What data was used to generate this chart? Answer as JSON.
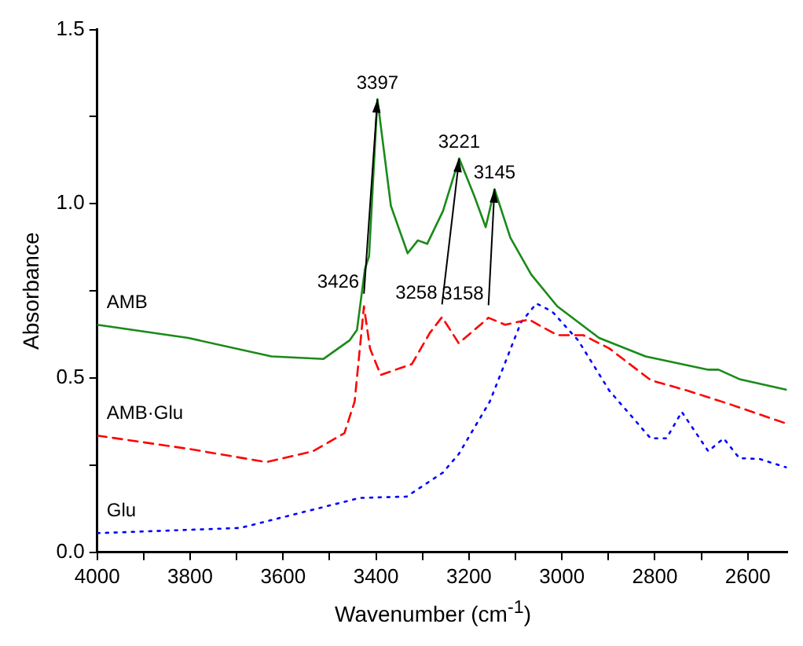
{
  "chart_data": {
    "type": "line",
    "xlabel": "Wavenumber (cm$^{-1}$)",
    "ylabel": "Absorbance",
    "xlim": [
      4000,
      2515
    ],
    "ylim": [
      0,
      1.5
    ],
    "xticks": [
      4000,
      {
        "value": 3900,
        "label": null
      },
      3800,
      {
        "value": 3700,
        "label": null
      },
      3600,
      {
        "value": 3500,
        "label": null
      },
      3400,
      {
        "value": 3300,
        "label": null
      },
      3200,
      {
        "value": 3100,
        "label": null
      },
      3000,
      {
        "value": 2900,
        "label": null
      },
      2800,
      {
        "value": 2700,
        "label": null
      },
      2600
    ],
    "yticks": [
      {
        "value": 0,
        "label": "0.0"
      },
      {
        "value": 0.25,
        "label": null
      },
      {
        "value": 0.5,
        "label": "0.5"
      },
      {
        "value": 0.75,
        "label": null
      },
      {
        "value": 1,
        "label": "1.0"
      },
      {
        "value": 1.25,
        "label": null
      },
      {
        "value": 1.5,
        "label": "1.5"
      }
    ],
    "grid": false,
    "legend": false,
    "marker": "none",
    "series": [
      {
        "name": "AMB",
        "color": "#1a8a1a",
        "line_style": "solid",
        "x": [
          4000,
          3804,
          3625,
          3513,
          3457,
          3441,
          3424,
          3415,
          3397,
          3368,
          3332,
          3310,
          3290,
          3256,
          3221,
          3189,
          3164,
          3145,
          3111,
          3066,
          3010,
          2920,
          2820,
          2685,
          2663,
          2618,
          2518
        ],
        "values": [
          0.653,
          0.615,
          0.562,
          0.555,
          0.608,
          0.638,
          0.812,
          0.85,
          1.3,
          0.994,
          0.858,
          0.895,
          0.885,
          0.979,
          1.13,
          1.024,
          0.933,
          1.042,
          0.903,
          0.797,
          0.706,
          0.615,
          0.562,
          0.524,
          0.524,
          0.497,
          0.467
        ]
      },
      {
        "name": "AMB·Glu",
        "color": "#ff0000",
        "line_style": "dashed",
        "x": [
          4000,
          3804,
          3636,
          3536,
          3468,
          3446,
          3426,
          3413,
          3390,
          3323,
          3284,
          3258,
          3222,
          3158,
          3122,
          3071,
          3010,
          2954,
          2898,
          2809,
          2730,
          2641,
          2518
        ],
        "values": [
          0.335,
          0.297,
          0.259,
          0.29,
          0.342,
          0.433,
          0.706,
          0.585,
          0.509,
          0.54,
          0.63,
          0.675,
          0.6,
          0.673,
          0.653,
          0.668,
          0.623,
          0.623,
          0.585,
          0.494,
          0.464,
          0.426,
          0.37
        ]
      },
      {
        "name": "Glu",
        "color": "#0000ff",
        "line_style": "dotted",
        "x": [
          4000,
          3692,
          3558,
          3435,
          3334,
          3256,
          3222,
          3155,
          3088,
          3055,
          3021,
          2965,
          2898,
          2809,
          2775,
          2742,
          2685,
          2652,
          2618,
          2575,
          2518
        ],
        "values": [
          0.055,
          0.07,
          0.115,
          0.156,
          0.16,
          0.229,
          0.282,
          0.433,
          0.66,
          0.714,
          0.691,
          0.608,
          0.464,
          0.327,
          0.327,
          0.403,
          0.29,
          0.327,
          0.27,
          0.268,
          0.244
        ]
      }
    ],
    "annotations": [
      {
        "text": "3426",
        "x": 3426,
        "y": 0.706
      },
      {
        "text": "3397",
        "x": 3397,
        "y": 1.3
      },
      {
        "text": "3258",
        "x": 3258,
        "y": 0.675
      },
      {
        "text": "3221",
        "x": 3221,
        "y": 1.13
      },
      {
        "text": "3158",
        "x": 3158,
        "y": 0.673
      },
      {
        "text": "3145",
        "x": 3145,
        "y": 1.042
      }
    ]
  }
}
